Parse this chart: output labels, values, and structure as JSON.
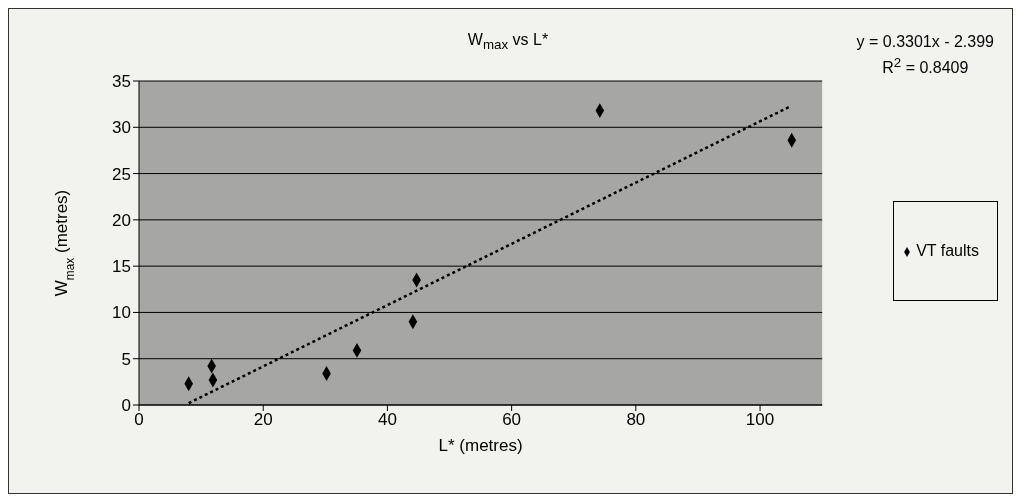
{
  "chart_data": {
    "type": "scatter",
    "title": "W$_{max}$ vs L*",
    "xlabel": "L* (metres)",
    "ylabel": "W$_{max}$ (metres)",
    "xlim": [
      0,
      110
    ],
    "xticks": [
      0,
      20,
      40,
      60,
      80,
      100
    ],
    "ylim": [
      0,
      35
    ],
    "yticks": [
      0,
      5,
      10,
      15,
      20,
      25,
      30,
      35
    ],
    "grid": "y",
    "legend": "right",
    "marker": "diamond",
    "annotations": [
      "y = 0.3301x - 2.399",
      "R$^{2}$ = 0.8409"
    ],
    "series": [
      {
        "name": "VT faults",
        "color": "#000000",
        "x": [
          8.0,
          11.7,
          11.9,
          30.2,
          35.1,
          44.1,
          44.7,
          74.2,
          105.1
        ],
        "values": [
          2.3,
          4.2,
          2.7,
          3.4,
          5.9,
          9.0,
          13.5,
          31.8,
          28.6
        ]
      },
      {
        "type": "line",
        "color": "#000000",
        "line_style": "dotted",
        "marker": "none",
        "x": [
          8,
          105
        ],
        "values": [
          0.2,
          32.3
        ]
      }
    ]
  }
}
